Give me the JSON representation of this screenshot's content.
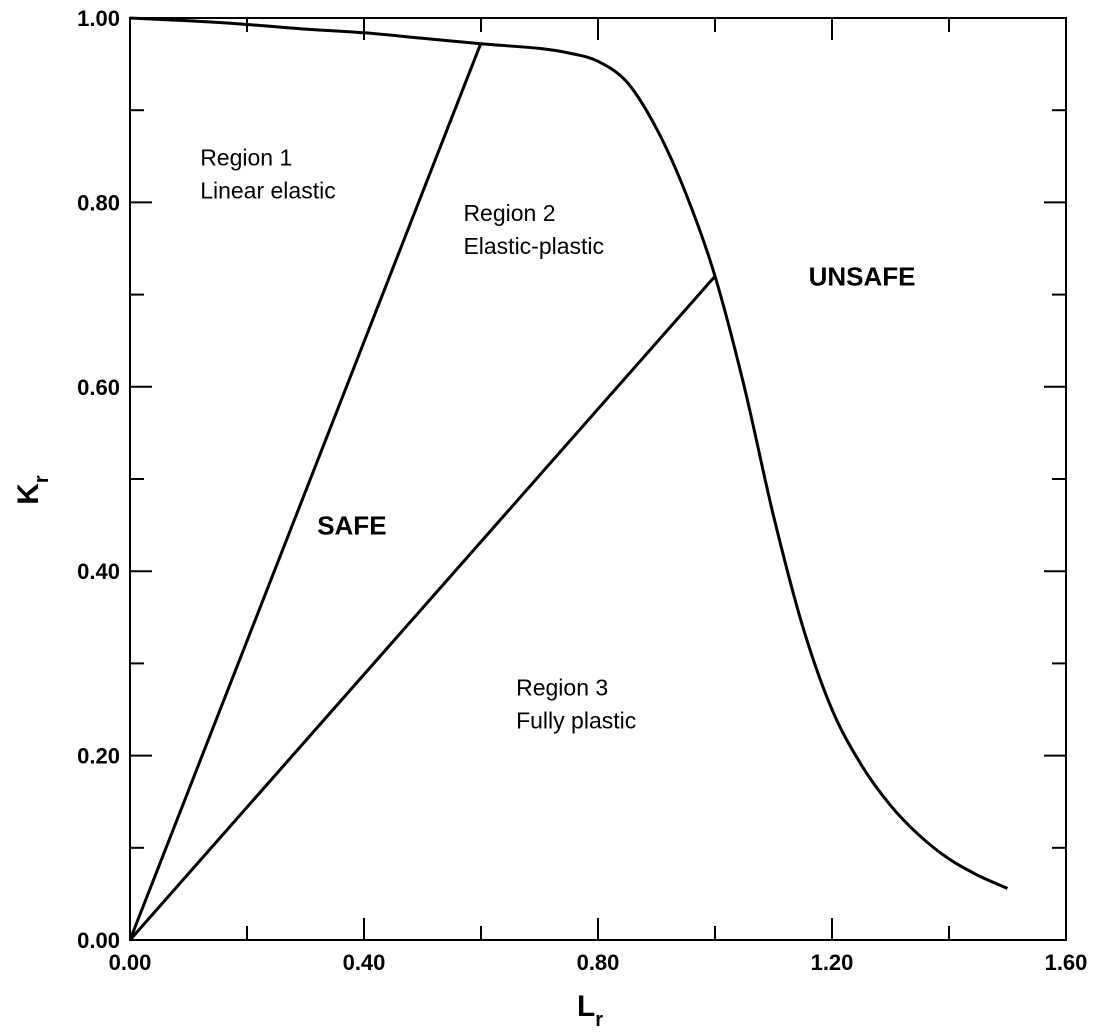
{
  "chart_data": {
    "type": "line",
    "title": "",
    "xlabel": {
      "main": "L",
      "sub": "r"
    },
    "ylabel": {
      "main": "K",
      "sub": "r"
    },
    "xlim": [
      0,
      1.6
    ],
    "ylim": [
      0,
      1.0
    ],
    "x_ticks": [
      "0.00",
      "0.40",
      "0.80",
      "1.20",
      "1.60"
    ],
    "y_ticks": [
      "0.00",
      "0.20",
      "0.40",
      "0.60",
      "0.80",
      "1.00"
    ],
    "grid": false,
    "legend": "none",
    "series": [
      {
        "x": [
          0,
          0.1,
          0.2,
          0.3,
          0.4,
          0.5,
          0.6,
          0.7,
          0.75,
          0.8,
          0.85,
          0.9,
          0.95,
          1.0,
          1.05,
          1.1,
          1.15,
          1.2,
          1.25,
          1.3,
          1.35,
          1.4,
          1.45,
          1.5
        ],
        "y": [
          1.0,
          0.997,
          0.993,
          0.988,
          0.984,
          0.978,
          0.972,
          0.967,
          0.962,
          0.953,
          0.93,
          0.88,
          0.81,
          0.72,
          0.6,
          0.46,
          0.34,
          0.25,
          0.19,
          0.146,
          0.113,
          0.088,
          0.07,
          0.056
        ]
      },
      {
        "x": [
          0,
          0.6
        ],
        "y": [
          0,
          0.973
        ]
      },
      {
        "x": [
          0,
          1.0
        ],
        "y": [
          0,
          0.72
        ]
      }
    ],
    "annotations": [
      {
        "lines": [
          "Region 1",
          "Linear elastic"
        ],
        "x": 0.12,
        "y": 0.84,
        "style": "normal"
      },
      {
        "lines": [
          "Region 2",
          "Elastic-plastic"
        ],
        "x": 0.57,
        "y": 0.78,
        "style": "normal"
      },
      {
        "lines": [
          "Region 3",
          "Fully plastic"
        ],
        "x": 0.66,
        "y": 0.265,
        "style": "normal"
      },
      {
        "lines": [
          "SAFE"
        ],
        "x": 0.32,
        "y": 0.44,
        "style": "bold"
      },
      {
        "lines": [
          "UNSAFE"
        ],
        "x": 1.16,
        "y": 0.71,
        "style": "bold"
      }
    ]
  }
}
